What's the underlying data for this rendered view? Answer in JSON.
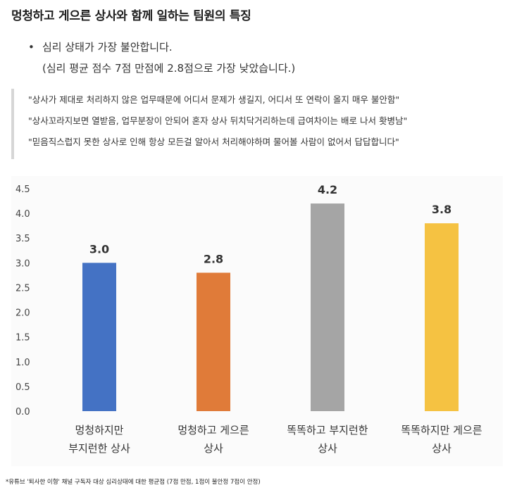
{
  "title": "멍청하고 게으른 상사와 함께 일하는 팀원의 특징",
  "bullet": {
    "line1": "심리 상태가 가장 불안합니다.",
    "line2": "(심리 평균 점수 7점 만점에 2.8점으로 가장 낮았습니다.)"
  },
  "quotes": [
    "\"상사가 제대로 처리하지 않은 업무때문에 어디서 문제가 생길지, 어디서 또 연락이 올지 매우 불안함\"",
    "\"상사꼬라지보면 열받음, 업무분장이 안되어 혼자 상사 뒤치닥거리하는데 급여차이는 배로 나서 홧병남\"",
    "\"믿음직스럽지 못한 상사로 인해 항상 모든걸 알아서 처리해야하며 물어볼 사람이 없어서 답답합니다\""
  ],
  "chart_data": {
    "type": "bar",
    "categories": [
      [
        "멍청하지만",
        "부지런한 상사"
      ],
      [
        "멍청하고 게으른",
        "상사"
      ],
      [
        "똑똑하고 부지런한",
        "상사"
      ],
      [
        "똑똑하지만 게으른",
        "상사"
      ]
    ],
    "values": [
      3.0,
      2.8,
      4.2,
      3.8
    ],
    "data_labels": [
      "3.0",
      "2.8",
      "4.2",
      "3.8"
    ],
    "colors": [
      "#4472c4",
      "#e07b39",
      "#a5a5a5",
      "#f5c242"
    ],
    "ylim": [
      0,
      4.5
    ],
    "yticks": [
      "0.0",
      "0.5",
      "1.0",
      "1.5",
      "2.0",
      "2.5",
      "3.0",
      "3.5",
      "4.0",
      "4.5"
    ],
    "background": "#fbfbfb",
    "grid": false
  },
  "footnote": "*유튜브 '퇴사한 이형' 채널 구독자 대상 심리상태에 대한 평균점 (7점 만점, 1점이 불안정 7점이 안정)"
}
